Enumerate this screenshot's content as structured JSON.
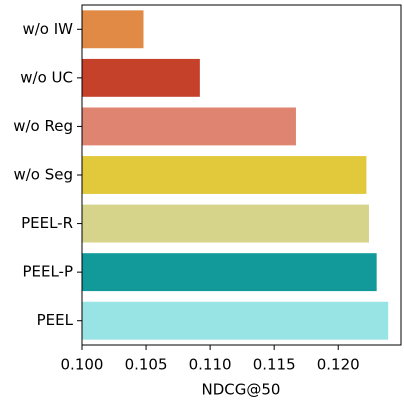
{
  "chart_data": {
    "type": "barh",
    "xlabel": "NDCG@50",
    "categories": [
      "w/o IW",
      "w/o UC",
      "w/o Reg",
      "w/o Seg",
      "PEEL-R",
      "PEEL-P",
      "PEEL"
    ],
    "values": [
      0.1048,
      0.1092,
      0.1167,
      0.1222,
      0.1224,
      0.123,
      0.1239
    ],
    "colors": [
      "#e08a45",
      "#c5412a",
      "#e08472",
      "#e2c93b",
      "#d6d48a",
      "#12999a",
      "#98e3e4"
    ],
    "xlim": [
      0.1,
      0.1249
    ],
    "xticks": [
      {
        "value": 0.1,
        "label": "0.100"
      },
      {
        "value": 0.105,
        "label": "0.105"
      },
      {
        "value": 0.11,
        "label": "0.110"
      },
      {
        "value": 0.115,
        "label": "0.115"
      },
      {
        "value": 0.12,
        "label": "0.120"
      }
    ]
  }
}
